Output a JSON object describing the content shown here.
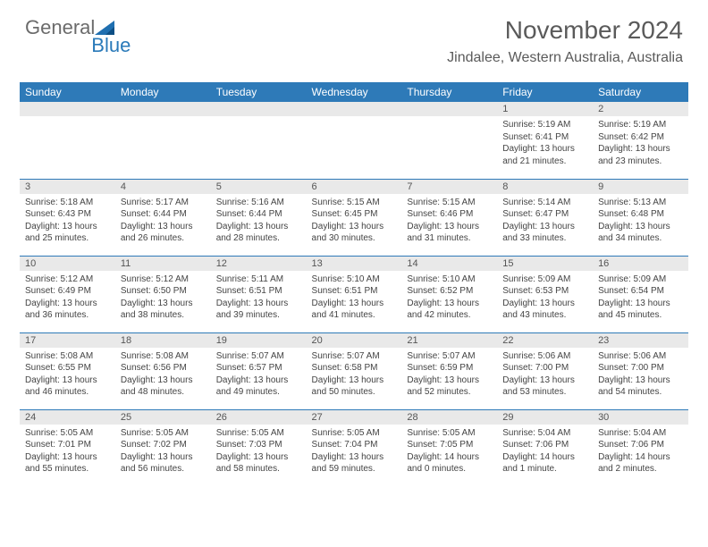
{
  "logo": {
    "text_general": "General",
    "text_blue": "Blue"
  },
  "title": "November 2024",
  "location": "Jindalee, Western Australia, Australia",
  "colors": {
    "header_bg": "#2e7ab8",
    "header_text": "#ffffff",
    "daynum_bg": "#e9e9e9",
    "daynum_text": "#555555",
    "body_text": "#444444",
    "title_text": "#5a5a5a",
    "row_border": "#2e7ab8",
    "logo_gray": "#6b6b6b",
    "logo_blue": "#2a7ab9",
    "page_bg": "#ffffff"
  },
  "typography": {
    "title_fontsize": 28,
    "location_fontsize": 16,
    "day_header_fontsize": 12,
    "daynum_fontsize": 11,
    "dayinfo_fontsize": 10,
    "font_family": "Arial"
  },
  "day_headers": [
    "Sunday",
    "Monday",
    "Tuesday",
    "Wednesday",
    "Thursday",
    "Friday",
    "Saturday"
  ],
  "weeks": [
    [
      {
        "num": "",
        "lines": []
      },
      {
        "num": "",
        "lines": []
      },
      {
        "num": "",
        "lines": []
      },
      {
        "num": "",
        "lines": []
      },
      {
        "num": "",
        "lines": []
      },
      {
        "num": "1",
        "lines": [
          "Sunrise: 5:19 AM",
          "Sunset: 6:41 PM",
          "Daylight: 13 hours",
          "and 21 minutes."
        ]
      },
      {
        "num": "2",
        "lines": [
          "Sunrise: 5:19 AM",
          "Sunset: 6:42 PM",
          "Daylight: 13 hours",
          "and 23 minutes."
        ]
      }
    ],
    [
      {
        "num": "3",
        "lines": [
          "Sunrise: 5:18 AM",
          "Sunset: 6:43 PM",
          "Daylight: 13 hours",
          "and 25 minutes."
        ]
      },
      {
        "num": "4",
        "lines": [
          "Sunrise: 5:17 AM",
          "Sunset: 6:44 PM",
          "Daylight: 13 hours",
          "and 26 minutes."
        ]
      },
      {
        "num": "5",
        "lines": [
          "Sunrise: 5:16 AM",
          "Sunset: 6:44 PM",
          "Daylight: 13 hours",
          "and 28 minutes."
        ]
      },
      {
        "num": "6",
        "lines": [
          "Sunrise: 5:15 AM",
          "Sunset: 6:45 PM",
          "Daylight: 13 hours",
          "and 30 minutes."
        ]
      },
      {
        "num": "7",
        "lines": [
          "Sunrise: 5:15 AM",
          "Sunset: 6:46 PM",
          "Daylight: 13 hours",
          "and 31 minutes."
        ]
      },
      {
        "num": "8",
        "lines": [
          "Sunrise: 5:14 AM",
          "Sunset: 6:47 PM",
          "Daylight: 13 hours",
          "and 33 minutes."
        ]
      },
      {
        "num": "9",
        "lines": [
          "Sunrise: 5:13 AM",
          "Sunset: 6:48 PM",
          "Daylight: 13 hours",
          "and 34 minutes."
        ]
      }
    ],
    [
      {
        "num": "10",
        "lines": [
          "Sunrise: 5:12 AM",
          "Sunset: 6:49 PM",
          "Daylight: 13 hours",
          "and 36 minutes."
        ]
      },
      {
        "num": "11",
        "lines": [
          "Sunrise: 5:12 AM",
          "Sunset: 6:50 PM",
          "Daylight: 13 hours",
          "and 38 minutes."
        ]
      },
      {
        "num": "12",
        "lines": [
          "Sunrise: 5:11 AM",
          "Sunset: 6:51 PM",
          "Daylight: 13 hours",
          "and 39 minutes."
        ]
      },
      {
        "num": "13",
        "lines": [
          "Sunrise: 5:10 AM",
          "Sunset: 6:51 PM",
          "Daylight: 13 hours",
          "and 41 minutes."
        ]
      },
      {
        "num": "14",
        "lines": [
          "Sunrise: 5:10 AM",
          "Sunset: 6:52 PM",
          "Daylight: 13 hours",
          "and 42 minutes."
        ]
      },
      {
        "num": "15",
        "lines": [
          "Sunrise: 5:09 AM",
          "Sunset: 6:53 PM",
          "Daylight: 13 hours",
          "and 43 minutes."
        ]
      },
      {
        "num": "16",
        "lines": [
          "Sunrise: 5:09 AM",
          "Sunset: 6:54 PM",
          "Daylight: 13 hours",
          "and 45 minutes."
        ]
      }
    ],
    [
      {
        "num": "17",
        "lines": [
          "Sunrise: 5:08 AM",
          "Sunset: 6:55 PM",
          "Daylight: 13 hours",
          "and 46 minutes."
        ]
      },
      {
        "num": "18",
        "lines": [
          "Sunrise: 5:08 AM",
          "Sunset: 6:56 PM",
          "Daylight: 13 hours",
          "and 48 minutes."
        ]
      },
      {
        "num": "19",
        "lines": [
          "Sunrise: 5:07 AM",
          "Sunset: 6:57 PM",
          "Daylight: 13 hours",
          "and 49 minutes."
        ]
      },
      {
        "num": "20",
        "lines": [
          "Sunrise: 5:07 AM",
          "Sunset: 6:58 PM",
          "Daylight: 13 hours",
          "and 50 minutes."
        ]
      },
      {
        "num": "21",
        "lines": [
          "Sunrise: 5:07 AM",
          "Sunset: 6:59 PM",
          "Daylight: 13 hours",
          "and 52 minutes."
        ]
      },
      {
        "num": "22",
        "lines": [
          "Sunrise: 5:06 AM",
          "Sunset: 7:00 PM",
          "Daylight: 13 hours",
          "and 53 minutes."
        ]
      },
      {
        "num": "23",
        "lines": [
          "Sunrise: 5:06 AM",
          "Sunset: 7:00 PM",
          "Daylight: 13 hours",
          "and 54 minutes."
        ]
      }
    ],
    [
      {
        "num": "24",
        "lines": [
          "Sunrise: 5:05 AM",
          "Sunset: 7:01 PM",
          "Daylight: 13 hours",
          "and 55 minutes."
        ]
      },
      {
        "num": "25",
        "lines": [
          "Sunrise: 5:05 AM",
          "Sunset: 7:02 PM",
          "Daylight: 13 hours",
          "and 56 minutes."
        ]
      },
      {
        "num": "26",
        "lines": [
          "Sunrise: 5:05 AM",
          "Sunset: 7:03 PM",
          "Daylight: 13 hours",
          "and 58 minutes."
        ]
      },
      {
        "num": "27",
        "lines": [
          "Sunrise: 5:05 AM",
          "Sunset: 7:04 PM",
          "Daylight: 13 hours",
          "and 59 minutes."
        ]
      },
      {
        "num": "28",
        "lines": [
          "Sunrise: 5:05 AM",
          "Sunset: 7:05 PM",
          "Daylight: 14 hours",
          "and 0 minutes."
        ]
      },
      {
        "num": "29",
        "lines": [
          "Sunrise: 5:04 AM",
          "Sunset: 7:06 PM",
          "Daylight: 14 hours",
          "and 1 minute."
        ]
      },
      {
        "num": "30",
        "lines": [
          "Sunrise: 5:04 AM",
          "Sunset: 7:06 PM",
          "Daylight: 14 hours",
          "and 2 minutes."
        ]
      }
    ]
  ]
}
